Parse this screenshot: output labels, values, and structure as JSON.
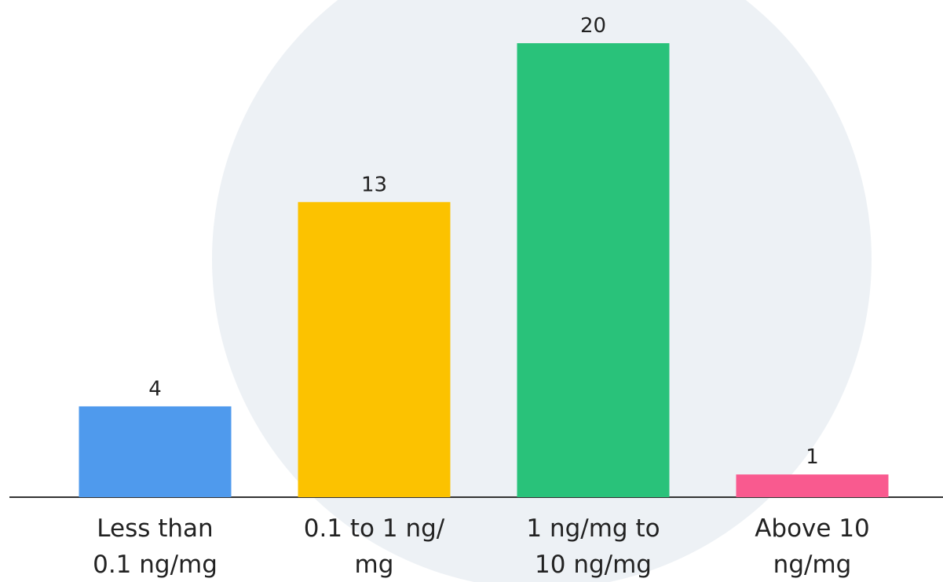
{
  "chart_data": {
    "type": "bar",
    "categories": [
      [
        "Less than",
        "0.1 ng/mg"
      ],
      [
        "0.1 to 1 ng/",
        "mg"
      ],
      [
        "1 ng/mg to",
        "10 ng/mg"
      ],
      [
        "Above 10",
        "ng/mg"
      ]
    ],
    "values": [
      4,
      13,
      20,
      1
    ],
    "colors": [
      "#4f9aed",
      "#fcc200",
      "#29c27a",
      "#f95a8f"
    ]
  }
}
